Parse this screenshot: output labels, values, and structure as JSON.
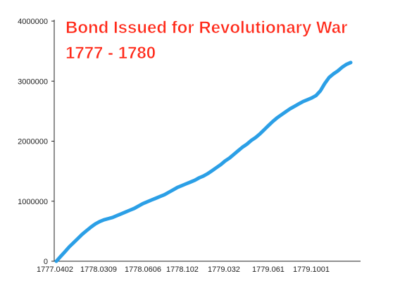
{
  "chart_data": {
    "type": "line",
    "title": "Bond Issued for Revolutionary War",
    "subtitle": "1777 - 1780",
    "xlabel": "",
    "ylabel": "",
    "ylim": [
      0,
      4000000
    ],
    "y_ticks": [
      0,
      1000000,
      2000000,
      3000000,
      4000000
    ],
    "x_tick_labels": [
      "1777.0402",
      "1778.0309",
      "1778.0606",
      "1778.102",
      "1779.032",
      "1779.061",
      "1779.1001"
    ],
    "grid": false,
    "legend": "none",
    "colors": {
      "line": "#2b9fe6",
      "title": "#ff2a1a",
      "axis": "#222222"
    },
    "series": [
      {
        "values": [
          0,
          80000,
          160000,
          240000,
          310000,
          380000,
          450000,
          510000,
          570000,
          620000,
          660000,
          690000,
          710000,
          730000,
          760000,
          790000,
          820000,
          850000,
          880000,
          920000,
          960000,
          990000,
          1020000,
          1050000,
          1080000,
          1110000,
          1150000,
          1190000,
          1230000,
          1260000,
          1290000,
          1320000,
          1350000,
          1390000,
          1420000,
          1460000,
          1510000,
          1560000,
          1610000,
          1670000,
          1720000,
          1780000,
          1840000,
          1900000,
          1950000,
          2010000,
          2060000,
          2120000,
          2190000,
          2260000,
          2330000,
          2390000,
          2440000,
          2490000,
          2540000,
          2580000,
          2620000,
          2660000,
          2690000,
          2720000,
          2760000,
          2840000,
          2960000,
          3060000,
          3120000,
          3170000,
          3230000,
          3280000,
          3310000
        ]
      }
    ]
  }
}
